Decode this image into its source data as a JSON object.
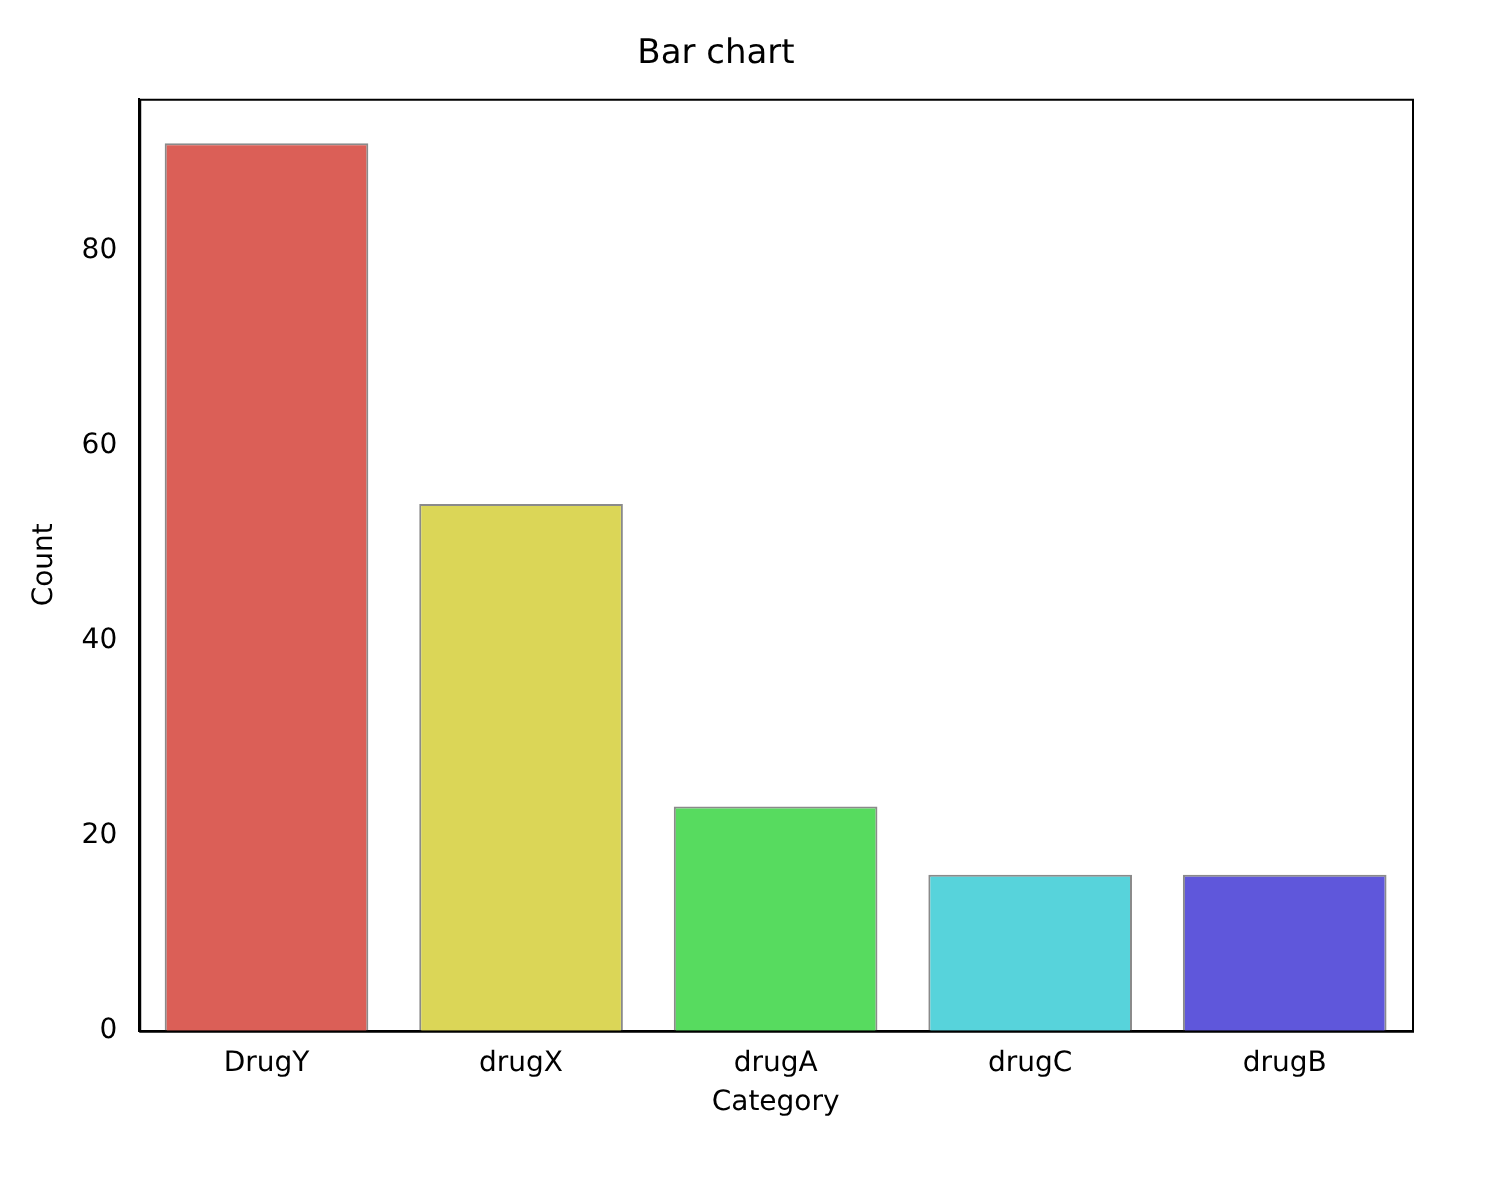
{
  "chart_data": {
    "type": "bar",
    "title": "Bar chart",
    "xlabel": "Category",
    "ylabel": "Count",
    "categories": [
      "DrugY",
      "drugX",
      "drugA",
      "drugC",
      "drugB"
    ],
    "values": [
      91,
      54,
      23,
      16,
      16
    ],
    "colors": [
      "#db5f57",
      "#dbd657",
      "#57db5f",
      "#57d3db",
      "#5f57db"
    ],
    "ylim": [
      0,
      95.55
    ],
    "yticks": [
      0,
      20,
      40,
      60,
      80
    ],
    "grid": false,
    "legend": false
  }
}
